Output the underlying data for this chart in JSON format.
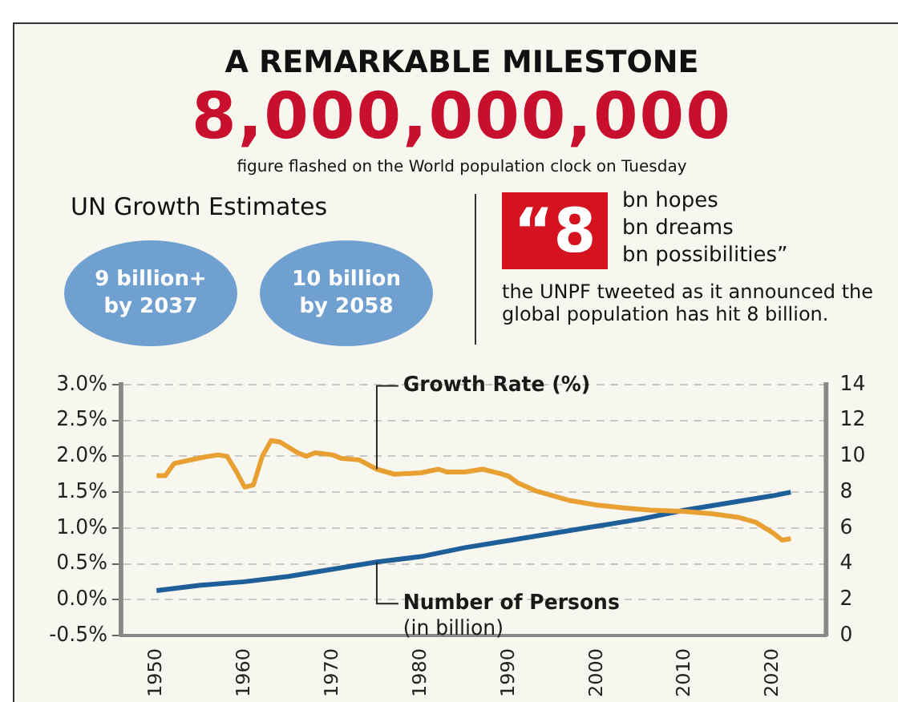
{
  "chart_data": {
    "type": "line",
    "title": "A REMARKABLE MILESTONE",
    "subtitle": "8,000,000,000",
    "annotations": [
      "figure flashed on the World population clock on Tuesday",
      "UN Growth Estimates",
      "9 billion+ by 2037",
      "10 billion by 2058",
      "“8",
      "bn hopes",
      "bn dreams",
      "bn possibilities”",
      "the UNPF tweeted as it announced the global population has hit 8 billion."
    ],
    "series": [
      {
        "name": "Growth Rate (%)",
        "color": "#e8a033",
        "x": [
          1950,
          1951,
          1952,
          1955,
          1957,
          1958,
          1959,
          1960,
          1961,
          1962,
          1963,
          1964,
          1966,
          1967,
          1968,
          1970,
          1971,
          1973,
          1975,
          1977,
          1980,
          1982,
          1983,
          1985,
          1987,
          1989,
          1990,
          1991,
          1993,
          1995,
          1997,
          2000,
          2003,
          2006,
          2010,
          2013,
          2016,
          2018,
          2020,
          2021,
          2022
        ],
        "values": [
          1.73,
          1.73,
          1.9,
          1.98,
          2.02,
          2.0,
          1.8,
          1.57,
          1.6,
          2.0,
          2.22,
          2.2,
          2.05,
          2.0,
          2.05,
          2.02,
          1.97,
          1.95,
          1.82,
          1.75,
          1.77,
          1.82,
          1.78,
          1.78,
          1.82,
          1.76,
          1.72,
          1.63,
          1.52,
          1.45,
          1.38,
          1.32,
          1.28,
          1.25,
          1.23,
          1.2,
          1.15,
          1.08,
          0.93,
          0.83,
          0.85
        ]
      },
      {
        "name": "Number of Persons (in billion)",
        "color": "#1f5f99",
        "axis": "y2",
        "x": [
          1950,
          1955,
          1960,
          1965,
          1970,
          1975,
          1980,
          1985,
          1990,
          1995,
          2000,
          2005,
          2010,
          2015,
          2020,
          2022
        ],
        "values": [
          2.5,
          2.8,
          3.0,
          3.3,
          3.7,
          4.1,
          4.4,
          4.9,
          5.3,
          5.7,
          6.1,
          6.5,
          7.0,
          7.4,
          7.8,
          8.0
        ]
      }
    ],
    "xlim": [
      1946,
      2026
    ],
    "xticks": [
      1950,
      1960,
      1970,
      1980,
      1990,
      2000,
      2010,
      2020
    ],
    "ylim": [
      -0.5,
      3.0
    ],
    "yticks": [
      {
        "value": -0.5,
        "label": "-0.5%"
      },
      {
        "value": 0,
        "label": "0.0%"
      },
      {
        "value": 0.5,
        "label": "0.5%"
      },
      {
        "value": 1.0,
        "label": "1.0%"
      },
      {
        "value": 1.5,
        "label": "1.5%"
      },
      {
        "value": 2.0,
        "label": "2.0%"
      },
      {
        "value": 2.5,
        "label": "2.5%"
      },
      {
        "value": 3.0,
        "label": "3.0%"
      }
    ],
    "y2lim": [
      0,
      14
    ],
    "y2ticks": [
      0,
      2,
      4,
      6,
      8,
      10,
      12,
      14
    ],
    "grid": "y",
    "legend": false,
    "marker": "none",
    "line_style": "solid"
  }
}
